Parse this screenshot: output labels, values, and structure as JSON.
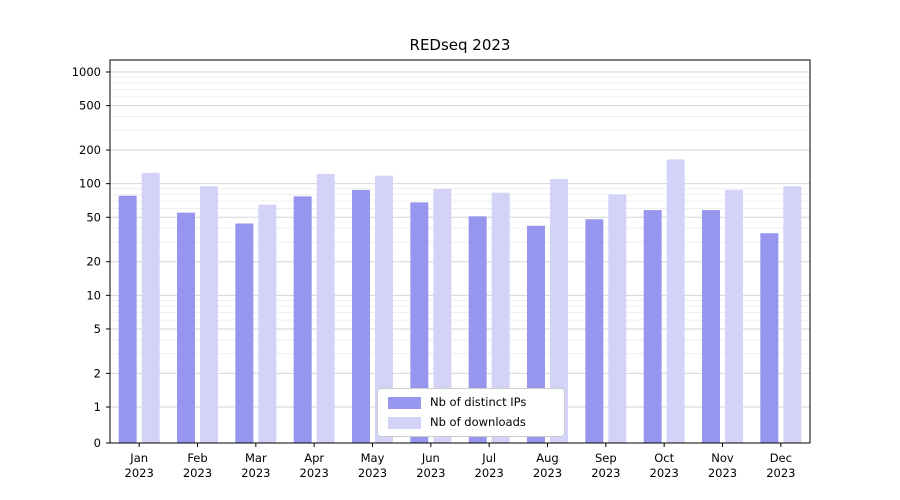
{
  "chart_data": {
    "type": "bar",
    "title": "REDseq 2023",
    "yscale": "log",
    "grid": {
      "enabled": true,
      "major_color": "#d6d6d6",
      "minor_color": "#ebebeb"
    },
    "categories": [
      "Jan 2023",
      "Feb 2023",
      "Mar 2023",
      "Apr 2023",
      "May 2023",
      "Jun 2023",
      "Jul 2023",
      "Aug 2023",
      "Sep 2023",
      "Oct 2023",
      "Nov 2023",
      "Dec 2023"
    ],
    "series": [
      {
        "name": "Nb of distinct IPs",
        "color": "#9696ee",
        "values": [
          78,
          55,
          44,
          77,
          88,
          68,
          51,
          42,
          48,
          58,
          58,
          36
        ]
      },
      {
        "name": "Nb of downloads",
        "color": "#d3d3f8",
        "values": [
          125,
          95,
          65,
          122,
          118,
          90,
          83,
          110,
          80,
          165,
          88,
          95
        ]
      }
    ],
    "yticks": [
      1000,
      500,
      200,
      100,
      50,
      20,
      10,
      5,
      2,
      1,
      0
    ],
    "ylim": [
      0,
      1000
    ],
    "xlabel": "",
    "ylabel": "",
    "legend": {
      "position": "bottom-center",
      "background": "#ffffff",
      "border_color": "#cccccc"
    }
  }
}
